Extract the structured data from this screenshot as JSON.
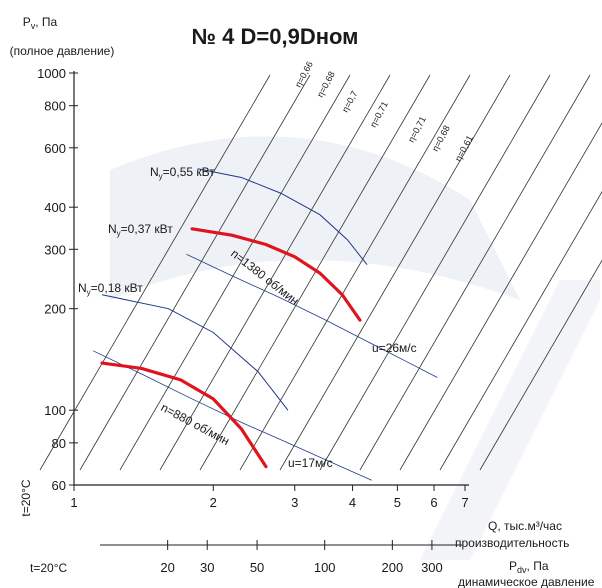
{
  "chart_data": {
    "type": "line",
    "title": "№ 4 D=0,9Dном",
    "ylabel_symbol": "P",
    "ylabel_sub": "v",
    "ylabel_unit": ", Па",
    "ylabel_desc": "(полное давление)",
    "xlabel": "Q, тыс.м³/час",
    "xlabel_desc": "производительность",
    "x2label_symbol": "P",
    "x2label_sub": "dv",
    "x2label_unit": ", Па",
    "x2label_desc": "динамическое давление",
    "temp_label": "t=20°С",
    "temp_label_bottom": "t=20°С",
    "y_scale": "log",
    "x_scale": "log",
    "ylim": [
      60,
      1000
    ],
    "xlim": [
      1,
      7
    ],
    "y_ticks": [
      "60",
      "80",
      "100",
      "200",
      "300",
      "400",
      "600",
      "800",
      "1000"
    ],
    "y_tick_values": [
      60,
      80,
      100,
      200,
      300,
      400,
      600,
      800,
      1000
    ],
    "x_ticks": [
      "1",
      "2",
      "3",
      "4",
      "5",
      "6",
      "7"
    ],
    "x_tick_values": [
      1,
      2,
      3,
      4,
      5,
      6,
      7
    ],
    "x2_ticks": [
      "20",
      "30",
      "50",
      "100",
      "200",
      "300"
    ],
    "x2_tick_values": [
      20,
      30,
      50,
      100,
      200,
      300
    ],
    "efficiency_labels": [
      "η=0,66",
      "η=0,68",
      "η=0,7",
      "η=0,71",
      "η=0,71",
      "η=0,68",
      "η=0,61"
    ],
    "series": [
      {
        "name": "n=1380 об/мин",
        "color": "#e0141e",
        "x": [
          1.8,
          2.2,
          2.6,
          3.0,
          3.4,
          3.8,
          4.15
        ],
        "y": [
          345,
          330,
          310,
          285,
          255,
          220,
          185
        ]
      },
      {
        "name": "n=880 об/мин",
        "color": "#e0141e",
        "x": [
          1.15,
          1.4,
          1.7,
          2.0,
          2.3,
          2.6
        ],
        "y": [
          138,
          133,
          123,
          108,
          88,
          68
        ]
      }
    ],
    "power_curves": [
      {
        "label": "N",
        "sub": "y",
        "value": "=0,55 кВт",
        "color": "#1e3a8a",
        "x": [
          1.85,
          2.3,
          2.8,
          3.4,
          3.9,
          4.3
        ],
        "y": [
          520,
          490,
          440,
          380,
          320,
          270
        ]
      },
      {
        "label": "N",
        "sub": "y",
        "value": "=0,37 кВт",
        "color": "#1e3a8a"
      },
      {
        "label": "N",
        "sub": "y",
        "value": "=0,18 кВт",
        "color": "#1e3a8a",
        "x": [
          1.15,
          1.6,
          2.0,
          2.5,
          2.9
        ],
        "y": [
          220,
          200,
          170,
          130,
          100
        ]
      }
    ],
    "velocity_labels": [
      "u=26м/с",
      "u=17м/с"
    ],
    "velocity_lines": [
      {
        "x": [
          1.75,
          2.2,
          2.8,
          3.5,
          4.3,
          5.2,
          6.1
        ],
        "y": [
          290,
          250,
          215,
          185,
          160,
          140,
          125
        ]
      },
      {
        "x": [
          1.1,
          1.4,
          1.8,
          2.3,
          2.9,
          3.6,
          4.4
        ],
        "y": [
          150,
          128,
          108,
          92,
          80,
          70,
          62
        ]
      }
    ],
    "grid": true
  }
}
